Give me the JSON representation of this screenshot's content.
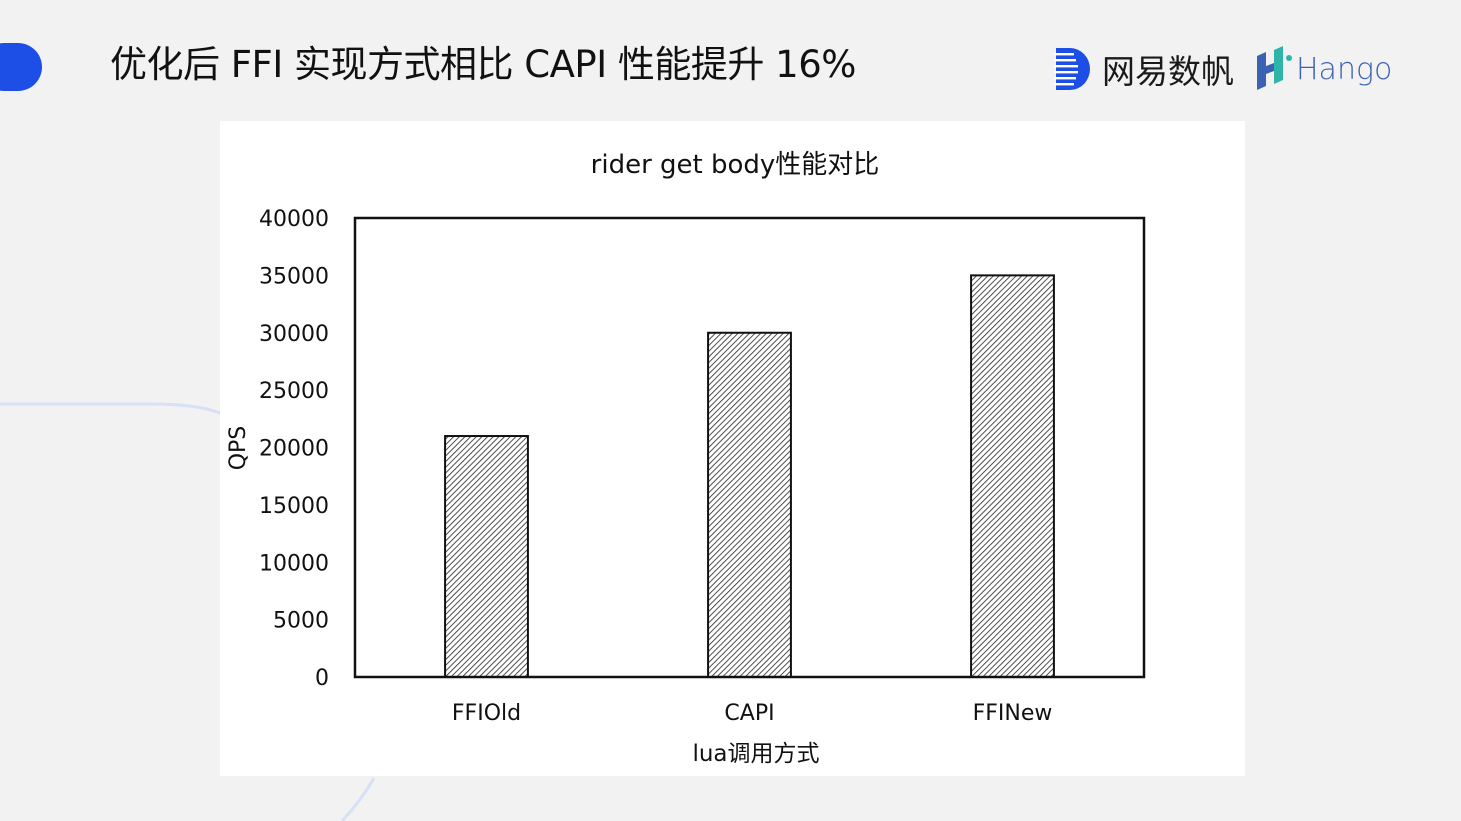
{
  "slide": {
    "title": "优化后 FFI 实现方式相比 CAPI 性能提升 16%"
  },
  "logos": {
    "netease": {
      "text": "网易数帆",
      "icon": "netease-d-icon",
      "color": "#1d4fe6"
    },
    "hango": {
      "text": "Hango",
      "icon": "hango-h-icon",
      "color": "#3b63b3"
    }
  },
  "colors": {
    "accent": "#1d4fe6",
    "background": "#f2f2f2",
    "panel": "#ffffff",
    "bar_stroke": "#111111"
  },
  "chart_data": {
    "type": "bar",
    "title": "rider get body性能对比",
    "xlabel": "lua调用方式",
    "ylabel": "QPS",
    "categories": [
      "FFIOld",
      "CAPI",
      "FFINew"
    ],
    "values": [
      21000,
      30000,
      35000
    ],
    "ylim": [
      0,
      40000
    ],
    "yticks": [
      0,
      5000,
      10000,
      15000,
      20000,
      25000,
      30000,
      35000,
      40000
    ],
    "bar_fill": "diagonal-hatch",
    "grid": false,
    "legend": "none"
  }
}
